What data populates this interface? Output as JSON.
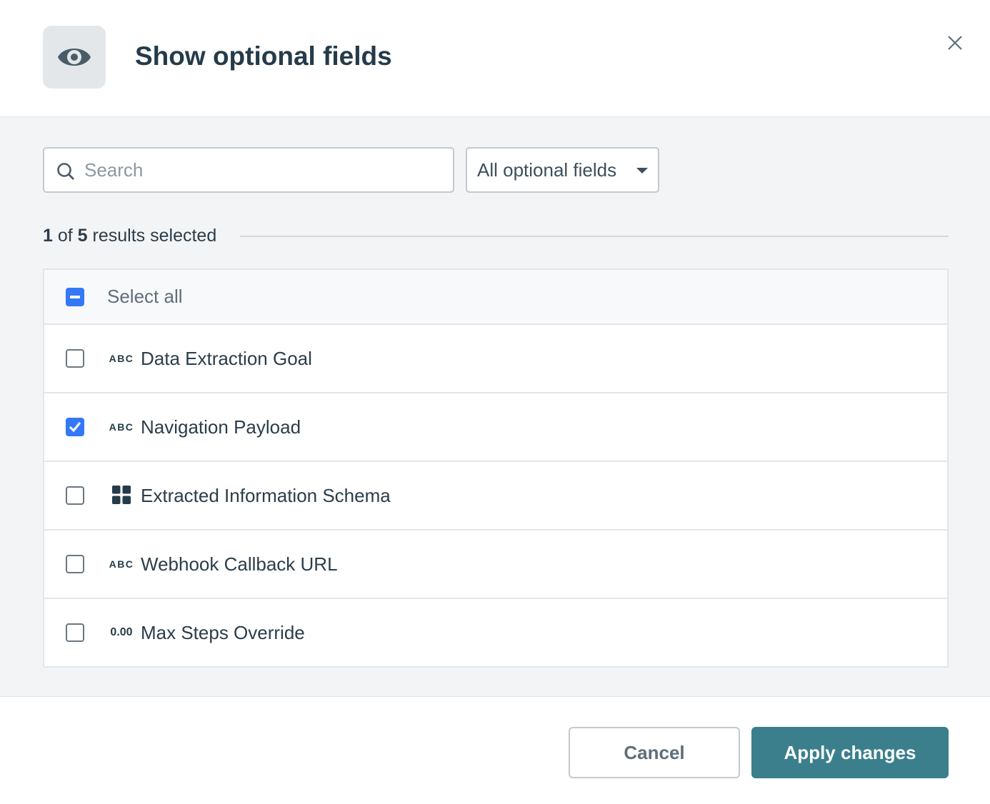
{
  "dialog": {
    "title": "Show optional fields",
    "icon": "eye-icon"
  },
  "search": {
    "placeholder": "Search",
    "value": ""
  },
  "filter": {
    "selected": "All optional fields"
  },
  "summary": {
    "selected": "1",
    "of": "of",
    "total": "5",
    "suffix": "results selected"
  },
  "select_all": {
    "label": "Select all",
    "state": "indeterminate"
  },
  "fields": [
    {
      "label": "Data Extraction Goal",
      "type_badge": "ABC",
      "checked": false
    },
    {
      "label": "Navigation Payload",
      "type_badge": "ABC",
      "checked": true
    },
    {
      "label": "Extracted Information Schema",
      "type_badge": "",
      "type_icon": "grid-icon",
      "checked": false
    },
    {
      "label": "Webhook Callback URL",
      "type_badge": "ABC",
      "checked": false
    },
    {
      "label": "Max Steps Override",
      "type_badge": "0.00",
      "checked": false
    }
  ],
  "footer": {
    "cancel": "Cancel",
    "apply": "Apply changes"
  },
  "colors": {
    "accent": "#3b7f8c",
    "checkbox": "#3578f6"
  }
}
